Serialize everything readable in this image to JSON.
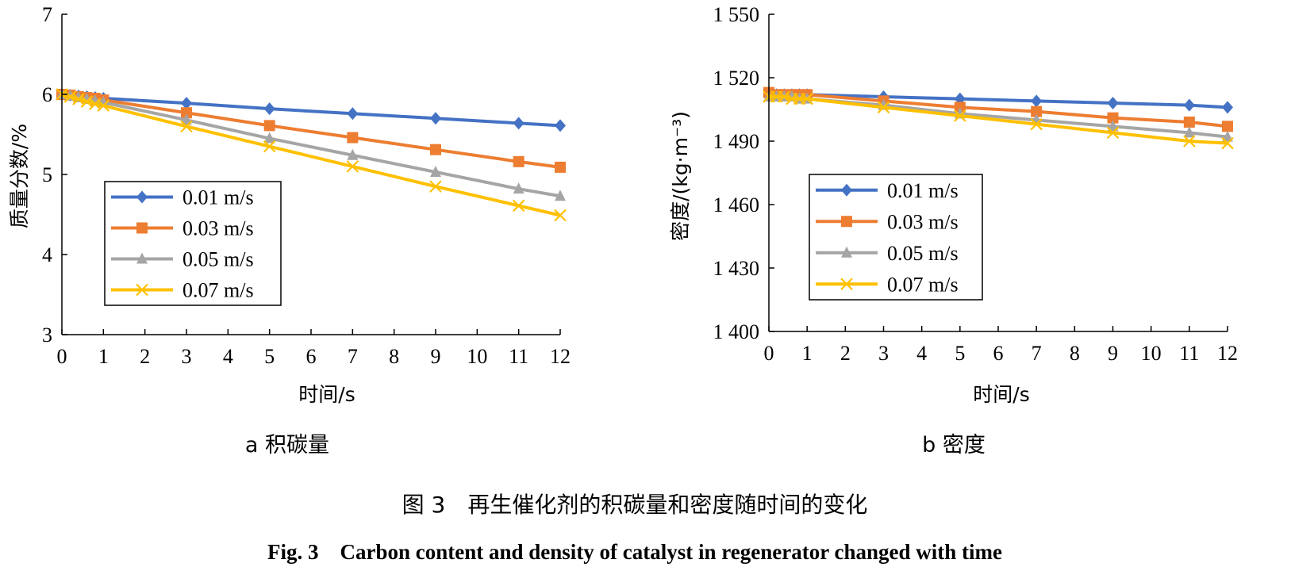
{
  "figure": {
    "caption_cn": "图 3　再生催化剂的积碳量和密度随时间的变化",
    "caption_en": "Fig. 3　Carbon content and density of catalyst in regenerator changed with time"
  },
  "colors": {
    "0.01 m/s": "#4472C4",
    "0.03 m/s": "#ED7D31",
    "0.05 m/s": "#A5A5A5",
    "0.07 m/s": "#FFC000"
  },
  "chart_data": [
    {
      "type": "line",
      "subtitle": "a 积碳量",
      "xlabel": "时间/s",
      "ylabel": "质量分数/%",
      "xlim": [
        0,
        12
      ],
      "ylim": [
        3,
        7
      ],
      "xticks": [
        "0",
        "1",
        "2",
        "3",
        "4",
        "5",
        "6",
        "7",
        "8",
        "9",
        "10",
        "11",
        "12"
      ],
      "yticks": [
        "3",
        "4",
        "5",
        "6",
        "7"
      ],
      "grid": false,
      "legend_position": "lower-left",
      "x": [
        0,
        0.2,
        0.4,
        0.6,
        0.8,
        1,
        3,
        5,
        7,
        9,
        11,
        12
      ],
      "series": [
        {
          "name": "0.01 m/s",
          "marker": "diamond",
          "values": [
            6.0,
            5.99,
            5.98,
            5.97,
            5.96,
            5.95,
            5.89,
            5.82,
            5.76,
            5.7,
            5.64,
            5.61
          ]
        },
        {
          "name": "0.03 m/s",
          "marker": "square",
          "values": [
            6.0,
            5.99,
            5.97,
            5.96,
            5.95,
            5.93,
            5.77,
            5.61,
            5.46,
            5.31,
            5.16,
            5.09
          ]
        },
        {
          "name": "0.05 m/s",
          "marker": "triangle",
          "values": [
            6.0,
            5.98,
            5.96,
            5.94,
            5.92,
            5.9,
            5.68,
            5.45,
            5.24,
            5.03,
            4.82,
            4.73
          ]
        },
        {
          "name": "0.07 m/s",
          "marker": "x",
          "values": [
            6.0,
            5.97,
            5.94,
            5.91,
            5.88,
            5.86,
            5.6,
            5.35,
            5.1,
            4.85,
            4.61,
            4.49
          ]
        }
      ]
    },
    {
      "type": "line",
      "subtitle": "b 密度",
      "xlabel": "时间/s",
      "ylabel": "密度/(kg·m⁻³)",
      "xlim": [
        0,
        12
      ],
      "ylim": [
        1400,
        1550
      ],
      "xticks": [
        "0",
        "1",
        "2",
        "3",
        "4",
        "5",
        "6",
        "7",
        "8",
        "9",
        "10",
        "11",
        "12"
      ],
      "yticks": [
        "1 400",
        "1 430",
        "1 460",
        "1 490",
        "1 520",
        "1 550"
      ],
      "grid": false,
      "legend_position": "lower-left",
      "x": [
        0,
        0.2,
        0.4,
        0.6,
        0.8,
        1,
        3,
        5,
        7,
        9,
        11,
        12
      ],
      "series": [
        {
          "name": "0.01 m/s",
          "marker": "diamond",
          "values": [
            1512,
            1512,
            1512,
            1512,
            1512,
            1512,
            1511,
            1510,
            1509,
            1508,
            1507,
            1506
          ]
        },
        {
          "name": "0.03 m/s",
          "marker": "square",
          "values": [
            1513,
            1512,
            1512,
            1512,
            1512,
            1512,
            1509,
            1506,
            1504,
            1501,
            1499,
            1497
          ]
        },
        {
          "name": "0.05 m/s",
          "marker": "triangle",
          "values": [
            1511,
            1511,
            1511,
            1511,
            1510,
            1510,
            1507,
            1503,
            1500,
            1497,
            1494,
            1492
          ]
        },
        {
          "name": "0.07 m/s",
          "marker": "x",
          "values": [
            1511,
            1511,
            1511,
            1510,
            1510,
            1510,
            1506,
            1502,
            1498,
            1494,
            1490,
            1489
          ]
        }
      ]
    }
  ]
}
